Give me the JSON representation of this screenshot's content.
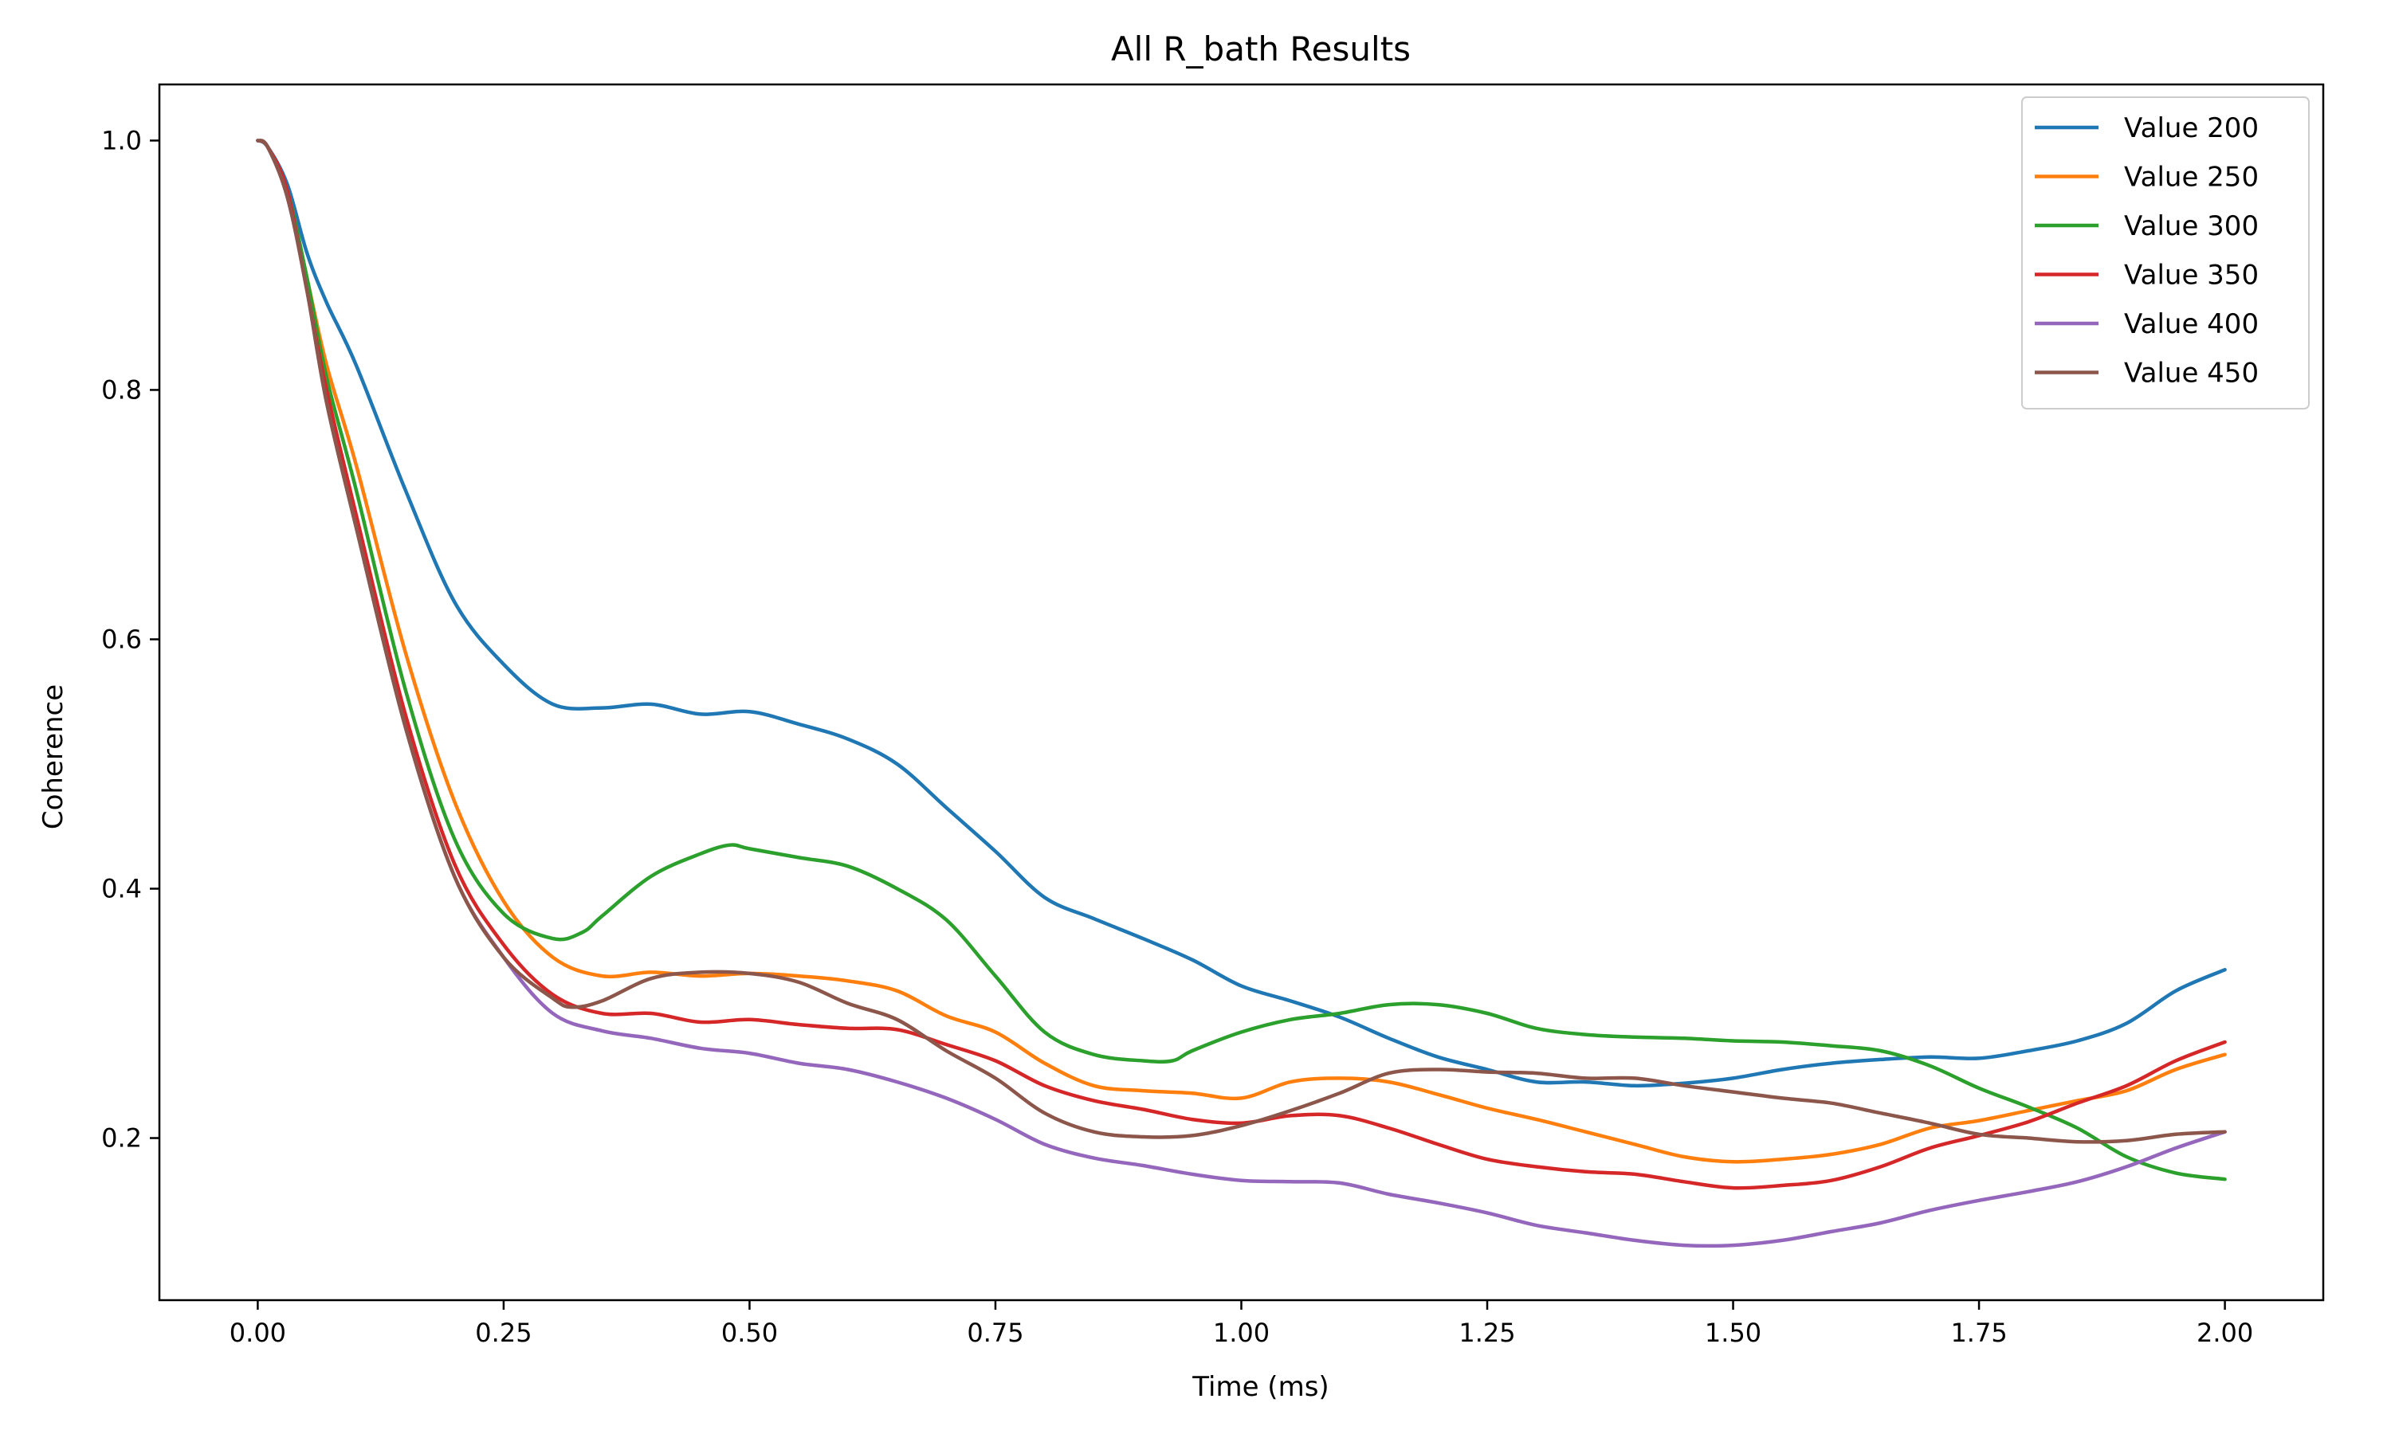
{
  "chart_data": {
    "type": "line",
    "title": "All R_bath Results",
    "xlabel": "Time (ms)",
    "ylabel": "Coherence",
    "xlim": [
      -0.1,
      2.1
    ],
    "ylim": [
      0.07,
      1.045
    ],
    "xticks": [
      0.0,
      0.25,
      0.5,
      0.75,
      1.0,
      1.25,
      1.5,
      1.75,
      2.0
    ],
    "xtick_labels": [
      "0.00",
      "0.25",
      "0.50",
      "0.75",
      "1.00",
      "1.25",
      "1.50",
      "1.75",
      "2.00"
    ],
    "yticks": [
      0.2,
      0.4,
      0.6,
      0.8,
      1.0
    ],
    "ytick_labels": [
      "0.2",
      "0.4",
      "0.6",
      "0.8",
      "1.0"
    ],
    "grid": false,
    "legend_position": "top-right",
    "series": [
      {
        "name": "Value 200",
        "color": "#1f77b4",
        "points": [
          [
            0,
            1.0
          ],
          [
            0.01,
            0.995
          ],
          [
            0.03,
            0.965
          ],
          [
            0.05,
            0.91
          ],
          [
            0.07,
            0.87
          ],
          [
            0.1,
            0.82
          ],
          [
            0.15,
            0.72
          ],
          [
            0.2,
            0.63
          ],
          [
            0.25,
            0.58
          ],
          [
            0.3,
            0.548
          ],
          [
            0.35,
            0.545
          ],
          [
            0.4,
            0.548
          ],
          [
            0.45,
            0.54
          ],
          [
            0.5,
            0.542
          ],
          [
            0.55,
            0.532
          ],
          [
            0.6,
            0.52
          ],
          [
            0.65,
            0.5
          ],
          [
            0.7,
            0.465
          ],
          [
            0.75,
            0.43
          ],
          [
            0.8,
            0.393
          ],
          [
            0.85,
            0.376
          ],
          [
            0.9,
            0.36
          ],
          [
            0.95,
            0.343
          ],
          [
            1.0,
            0.322
          ],
          [
            1.05,
            0.31
          ],
          [
            1.1,
            0.297
          ],
          [
            1.15,
            0.28
          ],
          [
            1.2,
            0.265
          ],
          [
            1.25,
            0.255
          ],
          [
            1.3,
            0.245
          ],
          [
            1.35,
            0.245
          ],
          [
            1.4,
            0.242
          ],
          [
            1.45,
            0.244
          ],
          [
            1.5,
            0.248
          ],
          [
            1.55,
            0.255
          ],
          [
            1.6,
            0.26
          ],
          [
            1.65,
            0.263
          ],
          [
            1.7,
            0.265
          ],
          [
            1.75,
            0.264
          ],
          [
            1.8,
            0.27
          ],
          [
            1.85,
            0.278
          ],
          [
            1.9,
            0.292
          ],
          [
            1.95,
            0.318
          ],
          [
            2.0,
            0.335
          ]
        ]
      },
      {
        "name": "Value 250",
        "color": "#ff7f0e",
        "points": [
          [
            0,
            1.0
          ],
          [
            0.01,
            0.995
          ],
          [
            0.03,
            0.96
          ],
          [
            0.05,
            0.89
          ],
          [
            0.07,
            0.82
          ],
          [
            0.1,
            0.74
          ],
          [
            0.15,
            0.59
          ],
          [
            0.2,
            0.47
          ],
          [
            0.25,
            0.39
          ],
          [
            0.3,
            0.345
          ],
          [
            0.35,
            0.33
          ],
          [
            0.4,
            0.333
          ],
          [
            0.45,
            0.33
          ],
          [
            0.5,
            0.332
          ],
          [
            0.55,
            0.33
          ],
          [
            0.6,
            0.326
          ],
          [
            0.65,
            0.318
          ],
          [
            0.7,
            0.298
          ],
          [
            0.75,
            0.285
          ],
          [
            0.8,
            0.26
          ],
          [
            0.85,
            0.242
          ],
          [
            0.9,
            0.238
          ],
          [
            0.95,
            0.236
          ],
          [
            1.0,
            0.232
          ],
          [
            1.05,
            0.245
          ],
          [
            1.1,
            0.248
          ],
          [
            1.15,
            0.245
          ],
          [
            1.2,
            0.235
          ],
          [
            1.25,
            0.224
          ],
          [
            1.3,
            0.215
          ],
          [
            1.35,
            0.205
          ],
          [
            1.4,
            0.195
          ],
          [
            1.45,
            0.185
          ],
          [
            1.5,
            0.181
          ],
          [
            1.55,
            0.183
          ],
          [
            1.6,
            0.187
          ],
          [
            1.65,
            0.195
          ],
          [
            1.7,
            0.208
          ],
          [
            1.75,
            0.214
          ],
          [
            1.8,
            0.222
          ],
          [
            1.85,
            0.23
          ],
          [
            1.9,
            0.238
          ],
          [
            1.95,
            0.255
          ],
          [
            2.0,
            0.267
          ]
        ]
      },
      {
        "name": "Value 300",
        "color": "#2ca02c",
        "points": [
          [
            0,
            1.0
          ],
          [
            0.01,
            0.995
          ],
          [
            0.03,
            0.96
          ],
          [
            0.05,
            0.89
          ],
          [
            0.07,
            0.81
          ],
          [
            0.1,
            0.72
          ],
          [
            0.15,
            0.56
          ],
          [
            0.2,
            0.44
          ],
          [
            0.25,
            0.38
          ],
          [
            0.3,
            0.36
          ],
          [
            0.33,
            0.365
          ],
          [
            0.35,
            0.378
          ],
          [
            0.4,
            0.41
          ],
          [
            0.45,
            0.428
          ],
          [
            0.48,
            0.435
          ],
          [
            0.5,
            0.432
          ],
          [
            0.55,
            0.425
          ],
          [
            0.6,
            0.418
          ],
          [
            0.65,
            0.4
          ],
          [
            0.7,
            0.375
          ],
          [
            0.75,
            0.33
          ],
          [
            0.8,
            0.285
          ],
          [
            0.85,
            0.267
          ],
          [
            0.9,
            0.262
          ],
          [
            0.93,
            0.262
          ],
          [
            0.95,
            0.27
          ],
          [
            1.0,
            0.285
          ],
          [
            1.05,
            0.295
          ],
          [
            1.1,
            0.3
          ],
          [
            1.15,
            0.307
          ],
          [
            1.2,
            0.307
          ],
          [
            1.25,
            0.3
          ],
          [
            1.3,
            0.288
          ],
          [
            1.35,
            0.283
          ],
          [
            1.4,
            0.281
          ],
          [
            1.45,
            0.28
          ],
          [
            1.5,
            0.278
          ],
          [
            1.55,
            0.277
          ],
          [
            1.6,
            0.274
          ],
          [
            1.65,
            0.27
          ],
          [
            1.7,
            0.258
          ],
          [
            1.75,
            0.24
          ],
          [
            1.8,
            0.225
          ],
          [
            1.85,
            0.208
          ],
          [
            1.9,
            0.185
          ],
          [
            1.95,
            0.172
          ],
          [
            2.0,
            0.167
          ]
        ]
      },
      {
        "name": "Value 350",
        "color": "#d62728",
        "points": [
          [
            0,
            1.0
          ],
          [
            0.01,
            0.995
          ],
          [
            0.03,
            0.96
          ],
          [
            0.05,
            0.88
          ],
          [
            0.07,
            0.8
          ],
          [
            0.1,
            0.7
          ],
          [
            0.15,
            0.54
          ],
          [
            0.2,
            0.42
          ],
          [
            0.25,
            0.355
          ],
          [
            0.3,
            0.315
          ],
          [
            0.35,
            0.3
          ],
          [
            0.4,
            0.3
          ],
          [
            0.45,
            0.293
          ],
          [
            0.5,
            0.295
          ],
          [
            0.55,
            0.291
          ],
          [
            0.6,
            0.288
          ],
          [
            0.65,
            0.287
          ],
          [
            0.7,
            0.275
          ],
          [
            0.75,
            0.262
          ],
          [
            0.8,
            0.242
          ],
          [
            0.85,
            0.23
          ],
          [
            0.9,
            0.223
          ],
          [
            0.95,
            0.215
          ],
          [
            1.0,
            0.212
          ],
          [
            1.05,
            0.218
          ],
          [
            1.1,
            0.218
          ],
          [
            1.15,
            0.208
          ],
          [
            1.2,
            0.195
          ],
          [
            1.25,
            0.183
          ],
          [
            1.3,
            0.177
          ],
          [
            1.35,
            0.173
          ],
          [
            1.4,
            0.171
          ],
          [
            1.45,
            0.165
          ],
          [
            1.5,
            0.16
          ],
          [
            1.55,
            0.162
          ],
          [
            1.6,
            0.166
          ],
          [
            1.65,
            0.177
          ],
          [
            1.7,
            0.192
          ],
          [
            1.75,
            0.202
          ],
          [
            1.8,
            0.213
          ],
          [
            1.85,
            0.228
          ],
          [
            1.9,
            0.242
          ],
          [
            1.95,
            0.262
          ],
          [
            2.0,
            0.277
          ]
        ]
      },
      {
        "name": "Value 400",
        "color": "#9467bd",
        "points": [
          [
            0,
            1.0
          ],
          [
            0.01,
            0.995
          ],
          [
            0.03,
            0.955
          ],
          [
            0.05,
            0.88
          ],
          [
            0.07,
            0.79
          ],
          [
            0.1,
            0.69
          ],
          [
            0.15,
            0.53
          ],
          [
            0.2,
            0.41
          ],
          [
            0.25,
            0.345
          ],
          [
            0.3,
            0.3
          ],
          [
            0.35,
            0.286
          ],
          [
            0.4,
            0.28
          ],
          [
            0.45,
            0.272
          ],
          [
            0.5,
            0.268
          ],
          [
            0.55,
            0.26
          ],
          [
            0.6,
            0.255
          ],
          [
            0.65,
            0.245
          ],
          [
            0.7,
            0.232
          ],
          [
            0.75,
            0.215
          ],
          [
            0.8,
            0.195
          ],
          [
            0.85,
            0.184
          ],
          [
            0.9,
            0.178
          ],
          [
            0.95,
            0.171
          ],
          [
            1.0,
            0.166
          ],
          [
            1.05,
            0.165
          ],
          [
            1.1,
            0.164
          ],
          [
            1.15,
            0.155
          ],
          [
            1.2,
            0.148
          ],
          [
            1.25,
            0.14
          ],
          [
            1.3,
            0.13
          ],
          [
            1.35,
            0.124
          ],
          [
            1.4,
            0.118
          ],
          [
            1.45,
            0.114
          ],
          [
            1.5,
            0.114
          ],
          [
            1.55,
            0.118
          ],
          [
            1.6,
            0.125
          ],
          [
            1.65,
            0.132
          ],
          [
            1.7,
            0.142
          ],
          [
            1.75,
            0.15
          ],
          [
            1.8,
            0.157
          ],
          [
            1.85,
            0.165
          ],
          [
            1.9,
            0.177
          ],
          [
            1.95,
            0.192
          ],
          [
            2.0,
            0.205
          ]
        ]
      },
      {
        "name": "Value 450",
        "color": "#8c564b",
        "points": [
          [
            0,
            1.0
          ],
          [
            0.01,
            0.995
          ],
          [
            0.03,
            0.955
          ],
          [
            0.05,
            0.88
          ],
          [
            0.07,
            0.79
          ],
          [
            0.1,
            0.69
          ],
          [
            0.15,
            0.53
          ],
          [
            0.2,
            0.41
          ],
          [
            0.25,
            0.345
          ],
          [
            0.3,
            0.312
          ],
          [
            0.32,
            0.305
          ],
          [
            0.35,
            0.31
          ],
          [
            0.4,
            0.328
          ],
          [
            0.45,
            0.333
          ],
          [
            0.5,
            0.332
          ],
          [
            0.55,
            0.325
          ],
          [
            0.6,
            0.308
          ],
          [
            0.65,
            0.295
          ],
          [
            0.7,
            0.27
          ],
          [
            0.75,
            0.248
          ],
          [
            0.8,
            0.22
          ],
          [
            0.85,
            0.205
          ],
          [
            0.9,
            0.201
          ],
          [
            0.95,
            0.202
          ],
          [
            1.0,
            0.21
          ],
          [
            1.05,
            0.222
          ],
          [
            1.1,
            0.236
          ],
          [
            1.15,
            0.252
          ],
          [
            1.2,
            0.255
          ],
          [
            1.25,
            0.253
          ],
          [
            1.3,
            0.252
          ],
          [
            1.35,
            0.248
          ],
          [
            1.4,
            0.248
          ],
          [
            1.45,
            0.242
          ],
          [
            1.5,
            0.237
          ],
          [
            1.55,
            0.232
          ],
          [
            1.6,
            0.228
          ],
          [
            1.65,
            0.22
          ],
          [
            1.7,
            0.212
          ],
          [
            1.75,
            0.203
          ],
          [
            1.8,
            0.2
          ],
          [
            1.85,
            0.197
          ],
          [
            1.9,
            0.198
          ],
          [
            1.95,
            0.203
          ],
          [
            2.0,
            0.205
          ]
        ]
      }
    ]
  }
}
